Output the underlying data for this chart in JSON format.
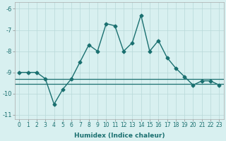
{
  "xlabel": "Humidex (Indice chaleur)",
  "x_values": [
    0,
    1,
    2,
    3,
    4,
    5,
    6,
    7,
    8,
    9,
    10,
    11,
    12,
    13,
    14,
    15,
    16,
    17,
    18,
    19,
    20,
    21,
    22,
    23
  ],
  "y_main": [
    -9.0,
    -9.0,
    -9.0,
    -9.3,
    -10.5,
    -9.8,
    -9.3,
    -8.5,
    -7.7,
    -8.0,
    -6.7,
    -6.8,
    -8.0,
    -7.6,
    -6.3,
    -8.0,
    -7.5,
    -8.3,
    -8.8,
    -9.2,
    -9.6,
    -9.4,
    -9.4,
    -9.6
  ],
  "y_line1": -9.3,
  "y_line2": -9.55,
  "ylim": [
    -11.2,
    -5.7
  ],
  "xlim": [
    -0.5,
    23.5
  ],
  "yticks": [
    -11,
    -10,
    -9,
    -8,
    -7,
    -6
  ],
  "xticks": [
    0,
    1,
    2,
    3,
    4,
    5,
    6,
    7,
    8,
    9,
    10,
    11,
    12,
    13,
    14,
    15,
    16,
    17,
    18,
    19,
    20,
    21,
    22,
    23
  ],
  "line_color": "#1a7070",
  "bg_color": "#d8f0f0",
  "grid_color": "#b8d8d8",
  "marker": "D",
  "marker_size": 2.5,
  "tick_fontsize": 5.5,
  "xlabel_fontsize": 6.5
}
